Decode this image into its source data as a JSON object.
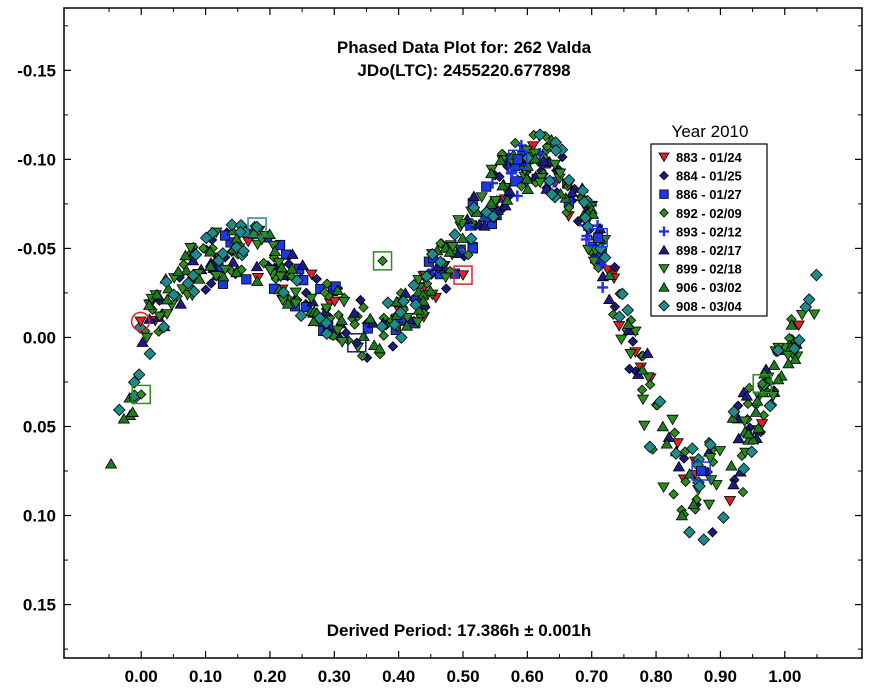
{
  "chart_data": {
    "type": "scatter",
    "title": "Phased Data Plot for: 262 Valda",
    "subtitle": "JDo(LTC): 2455220.677898",
    "annotation": "Derived Period: 17.386h ± 0.001h",
    "xlabel": "",
    "ylabel": "",
    "xlim": [
      -0.12,
      1.12
    ],
    "ylim": [
      0.18,
      -0.185
    ],
    "y_inverted": true,
    "x_ticks": [
      0.0,
      0.1,
      0.2,
      0.3,
      0.4,
      0.5,
      0.6,
      0.7,
      0.8,
      0.9,
      1.0
    ],
    "x_tick_labels": [
      "0.00",
      "0.10",
      "0.20",
      "0.30",
      "0.40",
      "0.50",
      "0.60",
      "0.70",
      "0.80",
      "0.90",
      "1.00"
    ],
    "y_ticks": [
      -0.15,
      -0.1,
      -0.05,
      0.0,
      0.05,
      0.1,
      0.15
    ],
    "y_tick_labels": [
      "-0.15",
      "-0.10",
      "-0.05",
      "0.00",
      "0.05",
      "0.10",
      "0.15"
    ],
    "grid": false,
    "legend": {
      "title": "Year 2010",
      "placement": "top-right",
      "entries": [
        {
          "label": "883 - 01/24",
          "marker": "triangle-down",
          "color": "#e02020"
        },
        {
          "label": "884 - 01/25",
          "marker": "diamond-small",
          "color": "#1a1a7a"
        },
        {
          "label": "886 - 01/27",
          "marker": "square",
          "color": "#1a3ae0"
        },
        {
          "label": "892 - 02/09",
          "marker": "diamond-small",
          "color": "#2e8b1e"
        },
        {
          "label": "893 - 02/12",
          "marker": "plus",
          "color": "#2030e0"
        },
        {
          "label": "898 - 02/17",
          "marker": "triangle-up",
          "color": "#1a1a8a"
        },
        {
          "label": "899 - 02/18",
          "marker": "triangle-down",
          "color": "#2e8b1e"
        },
        {
          "label": "906 - 03/02",
          "marker": "triangle-up",
          "color": "#1e7a1e"
        },
        {
          "label": "908 - 03/04",
          "marker": "diamond",
          "color": "#1e8a8a"
        }
      ]
    },
    "lightcurve": [
      [
        -0.05,
        0.075
      ],
      [
        -0.03,
        0.045
      ],
      [
        -0.01,
        0.025
      ],
      [
        0.0,
        0.005
      ],
      [
        0.02,
        -0.01
      ],
      [
        0.05,
        -0.028
      ],
      [
        0.08,
        -0.036
      ],
      [
        0.11,
        -0.043
      ],
      [
        0.14,
        -0.048
      ],
      [
        0.17,
        -0.048
      ],
      [
        0.2,
        -0.042
      ],
      [
        0.23,
        -0.033
      ],
      [
        0.26,
        -0.025
      ],
      [
        0.29,
        -0.016
      ],
      [
        0.32,
        -0.008
      ],
      [
        0.35,
        -0.004
      ],
      [
        0.38,
        -0.006
      ],
      [
        0.41,
        -0.014
      ],
      [
        0.44,
        -0.026
      ],
      [
        0.47,
        -0.04
      ],
      [
        0.5,
        -0.055
      ],
      [
        0.53,
        -0.072
      ],
      [
        0.56,
        -0.087
      ],
      [
        0.59,
        -0.097
      ],
      [
        0.62,
        -0.1
      ],
      [
        0.65,
        -0.092
      ],
      [
        0.68,
        -0.075
      ],
      [
        0.71,
        -0.05
      ],
      [
        0.74,
        -0.02
      ],
      [
        0.77,
        0.015
      ],
      [
        0.8,
        0.048
      ],
      [
        0.83,
        0.075
      ],
      [
        0.86,
        0.088
      ],
      [
        0.89,
        0.085
      ],
      [
        0.92,
        0.07
      ],
      [
        0.95,
        0.048
      ],
      [
        0.98,
        0.025
      ],
      [
        1.01,
        0.002
      ],
      [
        1.04,
        -0.018
      ],
      [
        1.05,
        -0.025
      ]
    ],
    "highlighted_points": [
      {
        "series": "883 - 01/24",
        "x": -0.001,
        "y": -0.009
      },
      {
        "series": "883 - 01/24",
        "x": 0.5,
        "y": -0.035
      },
      {
        "series": "884 - 01/25",
        "x": 0.335,
        "y": 0.003
      },
      {
        "series": "886 - 01/27",
        "x": 0.585,
        "y": -0.1
      },
      {
        "series": "886 - 01/27",
        "x": 0.71,
        "y": -0.056
      },
      {
        "series": "886 - 01/27",
        "x": 0.87,
        "y": 0.075
      },
      {
        "series": "892 - 02/09",
        "x": 0.375,
        "y": -0.043
      },
      {
        "series": "892 - 02/09",
        "x": 0.0,
        "y": 0.032
      },
      {
        "series": "892 - 02/09",
        "x": 0.965,
        "y": 0.026
      },
      {
        "series": "908 - 03/04",
        "x": 0.18,
        "y": -0.062
      }
    ]
  }
}
